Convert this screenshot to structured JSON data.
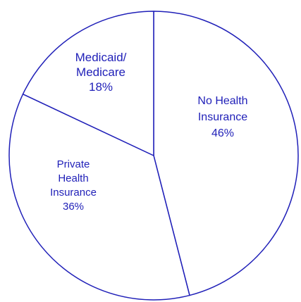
{
  "chart_data": {
    "type": "pie",
    "title": "",
    "slices": [
      {
        "label_lines": [
          "No Health",
          "Insurance"
        ],
        "value_label": "46%",
        "value": 46
      },
      {
        "label_lines": [
          "Private",
          "Health",
          "Insurance"
        ],
        "value_label": "36%",
        "value": 36
      },
      {
        "label_lines": [
          "Medicaid/",
          "Medicare"
        ],
        "value_label": "18%",
        "value": 18
      }
    ],
    "start_angle_deg": 0,
    "direction": "clockwise",
    "legend": "none"
  },
  "colors": {
    "outline": "#1f1fb8",
    "label_text": "#1f1fb8",
    "fill": "#ffffff"
  }
}
